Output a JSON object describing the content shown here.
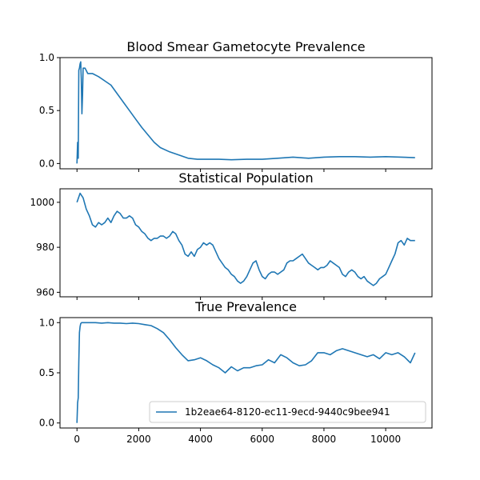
{
  "chart_data": [
    {
      "type": "line",
      "title": "Blood Smear Gametocyte Prevalence",
      "xlabel": "",
      "ylabel": "",
      "xlim": [
        -550,
        11500
      ],
      "ylim": [
        -0.05,
        1.0
      ],
      "xticks": [
        0,
        2000,
        4000,
        6000,
        8000,
        10000
      ],
      "xtick_labels_visible": false,
      "yticks": [
        0.0,
        0.5,
        1.0
      ],
      "ytick_labels": [
        "0.0",
        "0.5",
        "1.0"
      ],
      "grid": false,
      "series": [
        {
          "color": "#1f77b4",
          "x": [
            0,
            20,
            40,
            60,
            80,
            100,
            120,
            140,
            160,
            180,
            200,
            260,
            350,
            500,
            700,
            900,
            1100,
            1300,
            1500,
            1700,
            1900,
            2100,
            2300,
            2500,
            2700,
            3000,
            3300,
            3600,
            3900,
            4200,
            4600,
            5000,
            5500,
            6000,
            6500,
            7000,
            7500,
            8000,
            8500,
            9000,
            9500,
            10000,
            10500,
            10950
          ],
          "y": [
            0.0,
            0.2,
            0.05,
            0.88,
            0.9,
            0.94,
            0.96,
            0.8,
            0.47,
            0.65,
            0.9,
            0.9,
            0.85,
            0.85,
            0.82,
            0.78,
            0.74,
            0.66,
            0.58,
            0.5,
            0.42,
            0.34,
            0.27,
            0.2,
            0.15,
            0.11,
            0.08,
            0.05,
            0.04,
            0.04,
            0.04,
            0.035,
            0.04,
            0.04,
            0.05,
            0.06,
            0.05,
            0.06,
            0.065,
            0.065,
            0.06,
            0.065,
            0.06,
            0.055
          ]
        }
      ]
    },
    {
      "type": "line",
      "title": "Statistical Population",
      "xlabel": "",
      "ylabel": "",
      "xlim": [
        -550,
        11500
      ],
      "ylim": [
        958,
        1006
      ],
      "xticks": [
        0,
        2000,
        4000,
        6000,
        8000,
        10000
      ],
      "xtick_labels_visible": false,
      "yticks": [
        960,
        980,
        1000
      ],
      "ytick_labels": [
        "960",
        "980",
        "1000"
      ],
      "grid": false,
      "series": [
        {
          "color": "#1f77b4",
          "x": [
            0,
            100,
            200,
            300,
            400,
            500,
            600,
            700,
            800,
            900,
            1000,
            1100,
            1200,
            1300,
            1400,
            1500,
            1600,
            1700,
            1800,
            1900,
            2000,
            2100,
            2200,
            2300,
            2400,
            2500,
            2600,
            2700,
            2800,
            2900,
            3000,
            3100,
            3200,
            3300,
            3400,
            3500,
            3600,
            3700,
            3800,
            3900,
            4000,
            4100,
            4200,
            4300,
            4400,
            4500,
            4600,
            4700,
            4800,
            4900,
            5000,
            5100,
            5200,
            5300,
            5400,
            5500,
            5600,
            5700,
            5800,
            5900,
            6000,
            6100,
            6200,
            6300,
            6400,
            6500,
            6600,
            6700,
            6800,
            6900,
            7000,
            7100,
            7200,
            7300,
            7400,
            7500,
            7600,
            7700,
            7800,
            7900,
            8000,
            8100,
            8200,
            8300,
            8400,
            8500,
            8600,
            8700,
            8800,
            8900,
            9000,
            9100,
            9200,
            9300,
            9400,
            9500,
            9600,
            9700,
            9800,
            9900,
            10000,
            10100,
            10200,
            10300,
            10400,
            10500,
            10600,
            10700,
            10800,
            10950
          ],
          "y": [
            1000,
            1004,
            1002,
            997,
            994,
            990,
            989,
            991,
            990,
            991,
            993,
            991,
            994,
            996,
            995,
            993,
            993,
            994,
            993,
            990,
            989,
            987,
            986,
            984,
            983,
            984,
            984,
            985,
            985,
            984,
            985,
            987,
            986,
            983,
            981,
            977,
            976,
            978,
            976,
            979,
            980,
            982,
            981,
            982,
            981,
            978,
            975,
            973,
            971,
            970,
            968,
            967,
            965,
            964,
            965,
            967,
            970,
            973,
            974,
            970,
            967,
            966,
            968,
            969,
            969,
            968,
            969,
            970,
            973,
            974,
            974,
            975,
            976,
            977,
            975,
            973,
            972,
            971,
            970,
            971,
            971,
            972,
            974,
            973,
            972,
            971,
            968,
            967,
            969,
            970,
            969,
            967,
            966,
            967,
            965,
            964,
            963,
            964,
            966,
            967,
            968,
            971,
            974,
            977,
            982,
            983,
            981,
            984,
            983,
            983
          ]
        }
      ]
    },
    {
      "type": "line",
      "title": "True Prevalence",
      "xlabel": "",
      "ylabel": "",
      "xlim": [
        -550,
        11500
      ],
      "ylim": [
        -0.05,
        1.05
      ],
      "xticks": [
        0,
        2000,
        4000,
        6000,
        8000,
        10000
      ],
      "xtick_labels": [
        "0",
        "2000",
        "4000",
        "6000",
        "8000",
        "10000"
      ],
      "yticks": [
        0.0,
        0.5,
        1.0
      ],
      "ytick_labels": [
        "0.0",
        "0.5",
        "1.0"
      ],
      "grid": false,
      "legend": {
        "position": "lower-right",
        "entries": [
          "1b2eae64-8120-ec11-9ecd-9440c9bee941"
        ]
      },
      "series": [
        {
          "name": "1b2eae64-8120-ec11-9ecd-9440c9bee941",
          "color": "#1f77b4",
          "x": [
            0,
            20,
            40,
            60,
            80,
            100,
            120,
            150,
            200,
            400,
            600,
            800,
            1000,
            1200,
            1400,
            1600,
            1800,
            2000,
            2200,
            2400,
            2600,
            2800,
            3000,
            3200,
            3400,
            3600,
            3800,
            4000,
            4200,
            4400,
            4600,
            4800,
            5000,
            5200,
            5400,
            5600,
            5800,
            6000,
            6200,
            6400,
            6600,
            6800,
            7000,
            7200,
            7400,
            7600,
            7800,
            8000,
            8200,
            8400,
            8600,
            8800,
            9000,
            9200,
            9400,
            9600,
            9800,
            10000,
            10200,
            10400,
            10600,
            10800,
            10950
          ],
          "y": [
            0.0,
            0.2,
            0.25,
            0.6,
            0.9,
            0.96,
            0.99,
            1.0,
            1.0,
            1.0,
            1.0,
            0.995,
            1.0,
            0.995,
            0.995,
            0.99,
            0.995,
            0.99,
            0.98,
            0.97,
            0.94,
            0.9,
            0.83,
            0.75,
            0.68,
            0.62,
            0.63,
            0.65,
            0.62,
            0.58,
            0.55,
            0.5,
            0.56,
            0.52,
            0.55,
            0.55,
            0.57,
            0.58,
            0.63,
            0.6,
            0.68,
            0.65,
            0.6,
            0.57,
            0.58,
            0.62,
            0.7,
            0.7,
            0.68,
            0.72,
            0.74,
            0.72,
            0.7,
            0.68,
            0.66,
            0.68,
            0.64,
            0.7,
            0.68,
            0.7,
            0.66,
            0.6,
            0.7
          ]
        }
      ]
    }
  ]
}
